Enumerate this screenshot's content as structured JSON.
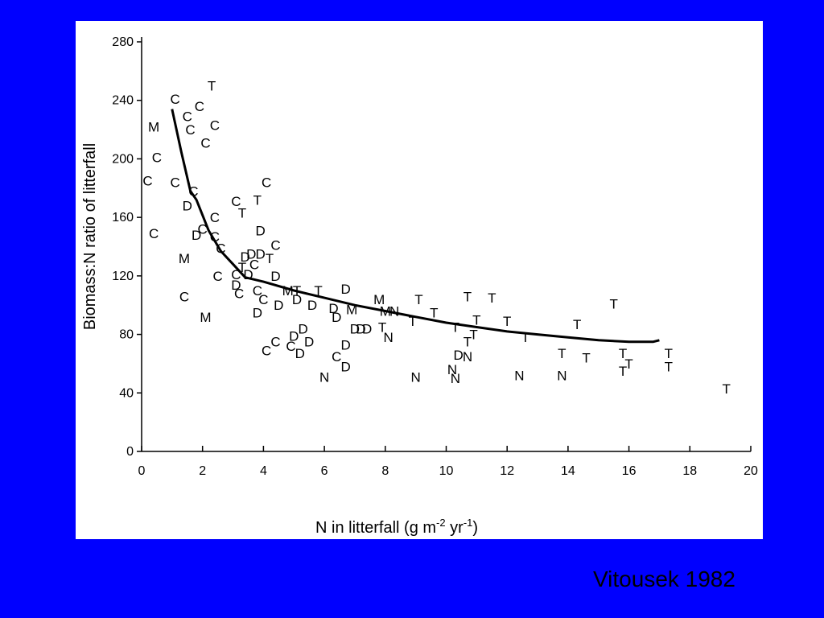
{
  "citation": "Vitousek 1982",
  "colors": {
    "background": "#0000ff",
    "panel": "#ffffff",
    "ink": "#000000"
  },
  "chart_data": {
    "type": "scatter",
    "title": "",
    "xlabel": "N in litterfall (g m",
    "xlabel_sup1": "-2",
    "xlabel_mid": " yr",
    "xlabel_sup2": "-1",
    "xlabel_end": ")",
    "ylabel": "Biomass:N ratio of litterfall",
    "xlim": [
      0,
      20
    ],
    "ylim": [
      0,
      280
    ],
    "x_ticks": [
      0,
      2,
      4,
      6,
      8,
      10,
      12,
      14,
      16,
      18,
      20
    ],
    "y_ticks": [
      0,
      40,
      80,
      120,
      160,
      200,
      240,
      280
    ],
    "x_tick_labels": [
      "0",
      "2",
      "4",
      "6",
      "8",
      "10",
      "12",
      "14",
      "16",
      "18",
      "20"
    ],
    "y_tick_labels": [
      "0",
      "40",
      "80",
      "120",
      "160",
      "200",
      "240",
      "280"
    ],
    "grid": false,
    "marker_style": "letters",
    "points": [
      {
        "x": 0.4,
        "y": 222,
        "label": "M"
      },
      {
        "x": 0.5,
        "y": 201,
        "label": "C"
      },
      {
        "x": 0.2,
        "y": 185,
        "label": "C"
      },
      {
        "x": 0.4,
        "y": 149,
        "label": "C"
      },
      {
        "x": 1.1,
        "y": 241,
        "label": "C"
      },
      {
        "x": 1.1,
        "y": 184,
        "label": "C"
      },
      {
        "x": 1.5,
        "y": 229,
        "label": "C"
      },
      {
        "x": 1.6,
        "y": 220,
        "label": "C"
      },
      {
        "x": 1.9,
        "y": 236,
        "label": "C"
      },
      {
        "x": 2.3,
        "y": 250,
        "label": "T"
      },
      {
        "x": 2.4,
        "y": 223,
        "label": "C"
      },
      {
        "x": 2.1,
        "y": 211,
        "label": "C"
      },
      {
        "x": 1.7,
        "y": 178,
        "label": "C"
      },
      {
        "x": 1.5,
        "y": 168,
        "label": "D"
      },
      {
        "x": 2.4,
        "y": 160,
        "label": "C"
      },
      {
        "x": 2.0,
        "y": 152,
        "label": "C"
      },
      {
        "x": 1.8,
        "y": 148,
        "label": "D"
      },
      {
        "x": 2.4,
        "y": 147,
        "label": "C"
      },
      {
        "x": 2.6,
        "y": 139,
        "label": "C"
      },
      {
        "x": 1.4,
        "y": 132,
        "label": "M"
      },
      {
        "x": 2.5,
        "y": 120,
        "label": "C"
      },
      {
        "x": 1.4,
        "y": 106,
        "label": "C"
      },
      {
        "x": 2.1,
        "y": 92,
        "label": "M"
      },
      {
        "x": 3.1,
        "y": 171,
        "label": "C"
      },
      {
        "x": 3.3,
        "y": 163,
        "label": "T"
      },
      {
        "x": 3.8,
        "y": 172,
        "label": "T"
      },
      {
        "x": 4.1,
        "y": 184,
        "label": "C"
      },
      {
        "x": 3.9,
        "y": 151,
        "label": "D"
      },
      {
        "x": 4.4,
        "y": 141,
        "label": "C"
      },
      {
        "x": 3.4,
        "y": 133,
        "label": "D"
      },
      {
        "x": 3.6,
        "y": 135,
        "label": "D"
      },
      {
        "x": 3.9,
        "y": 135,
        "label": "D"
      },
      {
        "x": 3.7,
        "y": 128,
        "label": "C"
      },
      {
        "x": 3.3,
        "y": 126,
        "label": "T"
      },
      {
        "x": 4.2,
        "y": 132,
        "label": "T"
      },
      {
        "x": 3.1,
        "y": 121,
        "label": "C"
      },
      {
        "x": 3.5,
        "y": 121,
        "label": "D"
      },
      {
        "x": 4.4,
        "y": 120,
        "label": "D"
      },
      {
        "x": 3.1,
        "y": 114,
        "label": "D"
      },
      {
        "x": 3.2,
        "y": 108,
        "label": "C"
      },
      {
        "x": 3.8,
        "y": 110,
        "label": "C"
      },
      {
        "x": 4.0,
        "y": 104,
        "label": "C"
      },
      {
        "x": 3.8,
        "y": 95,
        "label": "D"
      },
      {
        "x": 4.5,
        "y": 100,
        "label": "D"
      },
      {
        "x": 4.8,
        "y": 110,
        "label": "M"
      },
      {
        "x": 5.1,
        "y": 110,
        "label": "T"
      },
      {
        "x": 5.1,
        "y": 104,
        "label": "D"
      },
      {
        "x": 5.8,
        "y": 110,
        "label": "T"
      },
      {
        "x": 5.6,
        "y": 100,
        "label": "D"
      },
      {
        "x": 6.3,
        "y": 98,
        "label": "D"
      },
      {
        "x": 6.7,
        "y": 111,
        "label": "D"
      },
      {
        "x": 6.9,
        "y": 97,
        "label": "M"
      },
      {
        "x": 6.4,
        "y": 92,
        "label": "D"
      },
      {
        "x": 7.0,
        "y": 84,
        "label": "D"
      },
      {
        "x": 7.2,
        "y": 84,
        "label": "D"
      },
      {
        "x": 7.4,
        "y": 84,
        "label": "D"
      },
      {
        "x": 7.8,
        "y": 104,
        "label": "M"
      },
      {
        "x": 7.9,
        "y": 85,
        "label": "T"
      },
      {
        "x": 8.0,
        "y": 96,
        "label": "M"
      },
      {
        "x": 8.1,
        "y": 78,
        "label": "N"
      },
      {
        "x": 8.3,
        "y": 96,
        "label": "N"
      },
      {
        "x": 5.3,
        "y": 84,
        "label": "D"
      },
      {
        "x": 5.0,
        "y": 79,
        "label": "D"
      },
      {
        "x": 4.9,
        "y": 72,
        "label": "C"
      },
      {
        "x": 5.5,
        "y": 75,
        "label": "D"
      },
      {
        "x": 4.4,
        "y": 75,
        "label": "C"
      },
      {
        "x": 4.1,
        "y": 69,
        "label": "C"
      },
      {
        "x": 5.2,
        "y": 67,
        "label": "D"
      },
      {
        "x": 6.7,
        "y": 73,
        "label": "D"
      },
      {
        "x": 6.4,
        "y": 65,
        "label": "C"
      },
      {
        "x": 6.7,
        "y": 58,
        "label": "D"
      },
      {
        "x": 6.0,
        "y": 51,
        "label": "N"
      },
      {
        "x": 9.1,
        "y": 104,
        "label": "T"
      },
      {
        "x": 9.6,
        "y": 95,
        "label": "T"
      },
      {
        "x": 8.9,
        "y": 89,
        "label": "T"
      },
      {
        "x": 10.7,
        "y": 106,
        "label": "T"
      },
      {
        "x": 11.5,
        "y": 105,
        "label": "T"
      },
      {
        "x": 12.0,
        "y": 89,
        "label": "T"
      },
      {
        "x": 10.3,
        "y": 85,
        "label": "T"
      },
      {
        "x": 11.0,
        "y": 90,
        "label": "T"
      },
      {
        "x": 10.9,
        "y": 80,
        "label": "T"
      },
      {
        "x": 10.7,
        "y": 75,
        "label": "T"
      },
      {
        "x": 10.4,
        "y": 66,
        "label": "D"
      },
      {
        "x": 10.7,
        "y": 65,
        "label": "N"
      },
      {
        "x": 10.2,
        "y": 56,
        "label": "N"
      },
      {
        "x": 10.3,
        "y": 50,
        "label": "N"
      },
      {
        "x": 9.0,
        "y": 51,
        "label": "N"
      },
      {
        "x": 12.6,
        "y": 78,
        "label": "T"
      },
      {
        "x": 12.4,
        "y": 52,
        "label": "N"
      },
      {
        "x": 13.8,
        "y": 52,
        "label": "N"
      },
      {
        "x": 13.8,
        "y": 67,
        "label": "T"
      },
      {
        "x": 14.3,
        "y": 87,
        "label": "T"
      },
      {
        "x": 14.6,
        "y": 64,
        "label": "T"
      },
      {
        "x": 15.5,
        "y": 101,
        "label": "T"
      },
      {
        "x": 15.8,
        "y": 67,
        "label": "T"
      },
      {
        "x": 16.0,
        "y": 60,
        "label": "T"
      },
      {
        "x": 15.8,
        "y": 55,
        "label": "T"
      },
      {
        "x": 17.3,
        "y": 67,
        "label": "T"
      },
      {
        "x": 17.3,
        "y": 58,
        "label": "T"
      },
      {
        "x": 19.2,
        "y": 43,
        "label": "T"
      }
    ],
    "series": [
      {
        "type": "line",
        "x": [
          1.0,
          1.3,
          1.6,
          1.8,
          2.2,
          2.6,
          3.0,
          3.4,
          4.0,
          5.0,
          6.0,
          7.0,
          8.0,
          9.0,
          10.0,
          11.0,
          12.0,
          13.0,
          14.0,
          15.0,
          16.0,
          16.8,
          17.0
        ],
        "y": [
          234,
          205,
          178,
          172,
          151,
          137,
          128,
          119,
          116,
          110,
          105,
          100,
          96,
          92,
          88,
          85,
          82,
          80,
          78,
          76,
          75,
          75,
          76
        ]
      }
    ]
  }
}
